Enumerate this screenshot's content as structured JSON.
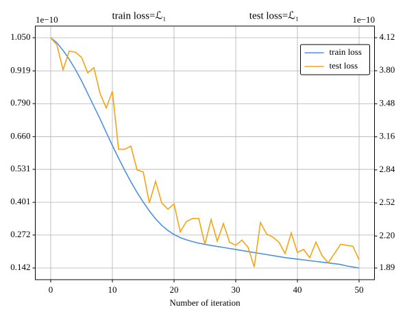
{
  "chart_data": {
    "type": "line",
    "titles": [
      "train loss=ℒ₁",
      "test loss=ℒ₁"
    ],
    "xlabel": "Number of iteration",
    "y_offset_label": "1e−10",
    "y2_offset_label": "1e−10",
    "x": [
      0,
      1,
      2,
      3,
      4,
      5,
      6,
      7,
      8,
      9,
      10,
      11,
      12,
      13,
      14,
      15,
      16,
      17,
      18,
      19,
      20,
      21,
      22,
      23,
      24,
      25,
      26,
      27,
      28,
      29,
      30,
      31,
      32,
      33,
      34,
      35,
      36,
      37,
      38,
      39,
      40,
      41,
      42,
      43,
      44,
      45,
      46,
      47,
      48,
      49,
      50
    ],
    "series": [
      {
        "name": "train loss",
        "color": "#4a90e2",
        "axis": "y",
        "values": [
          1.05,
          1.03,
          1.0,
          0.965,
          0.925,
          0.88,
          0.83,
          0.78,
          0.73,
          0.677,
          0.625,
          0.575,
          0.527,
          0.482,
          0.44,
          0.402,
          0.367,
          0.336,
          0.31,
          0.29,
          0.274,
          0.262,
          0.253,
          0.246,
          0.24,
          0.235,
          0.231,
          0.227,
          0.223,
          0.219,
          0.215,
          0.211,
          0.207,
          0.203,
          0.199,
          0.195,
          0.191,
          0.187,
          0.183,
          0.18,
          0.177,
          0.174,
          0.171,
          0.168,
          0.165,
          0.162,
          0.159,
          0.156,
          0.15,
          0.146,
          0.142
        ]
      },
      {
        "name": "test loss",
        "color": "#f5a310",
        "axis": "y2",
        "values": [
          4.12,
          4.05,
          3.81,
          3.99,
          3.98,
          3.93,
          3.78,
          3.83,
          3.58,
          3.44,
          3.6,
          3.04,
          3.04,
          3.07,
          2.84,
          2.82,
          2.52,
          2.73,
          2.52,
          2.46,
          2.51,
          2.24,
          2.34,
          2.37,
          2.37,
          2.12,
          2.36,
          2.15,
          2.32,
          2.14,
          2.11,
          2.16,
          2.09,
          1.9,
          2.33,
          2.22,
          2.19,
          2.14,
          2.03,
          2.23,
          2.04,
          2.07,
          1.99,
          2.14,
          2.01,
          1.94,
          2.03,
          2.12,
          2.11,
          2.1,
          1.97
        ]
      }
    ],
    "xlim": [
      -2.5,
      52.5
    ],
    "xticks": [
      0,
      10,
      20,
      30,
      40,
      50
    ],
    "ylim": [
      0.096,
      1.096
    ],
    "yticks": [
      {
        "value": 1.05,
        "label": "1.050"
      },
      {
        "value": 0.919,
        "label": "0.919"
      },
      {
        "value": 0.79,
        "label": "0.790"
      },
      {
        "value": 0.66,
        "label": "0.660"
      },
      {
        "value": 0.531,
        "label": "0.531"
      },
      {
        "value": 0.401,
        "label": "0.401"
      },
      {
        "value": 0.272,
        "label": "0.272"
      },
      {
        "value": 0.142,
        "label": "0.142"
      }
    ],
    "y2lim": [
      1.777,
      4.233
    ],
    "y2ticks": [
      4.12,
      {
        "value": 3.8,
        "label": "3.80"
      },
      3.48,
      3.16,
      2.84,
      2.52,
      {
        "value": 2.2,
        "label": "2.20"
      },
      1.89
    ],
    "grid": true,
    "legend": "upper right"
  }
}
